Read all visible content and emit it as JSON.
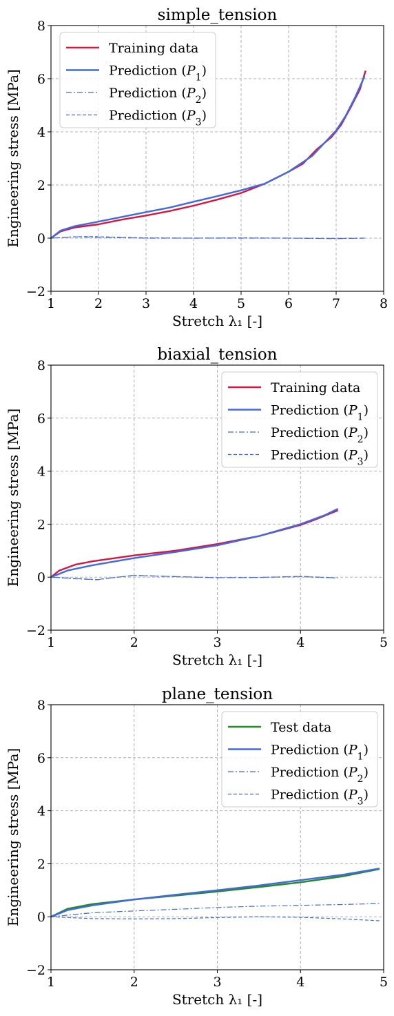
{
  "colors": {
    "training": "#d6163f",
    "test": "#228b22",
    "prediction": "#4169e1"
  },
  "chart_data": [
    {
      "type": "line",
      "title": "simple_tension",
      "xlabel": "Stretch λ₁ [-]",
      "ylabel": "Engineering stress [MPa]",
      "xlim": [
        1,
        8
      ],
      "ylim": [
        -2,
        8
      ],
      "xticks": [
        "1",
        "2",
        "3",
        "4",
        "5",
        "6",
        "7",
        "8"
      ],
      "yticks": [
        "−2",
        "0",
        "2",
        "4",
        "6",
        "8"
      ],
      "grid": true,
      "legend_position": "top-left",
      "series": [
        {
          "name": "Training data",
          "color_key": "training",
          "style": "solid",
          "x": [
            1.0,
            1.2,
            1.5,
            2.0,
            2.5,
            3.0,
            3.5,
            4.0,
            4.5,
            5.0,
            5.5,
            6.0,
            6.3,
            6.6,
            6.9,
            7.1,
            7.3,
            7.5,
            7.62
          ],
          "y": [
            0.0,
            0.25,
            0.4,
            0.52,
            0.7,
            0.85,
            1.02,
            1.22,
            1.45,
            1.7,
            2.05,
            2.5,
            2.8,
            3.35,
            3.8,
            4.25,
            4.9,
            5.6,
            6.3
          ]
        },
        {
          "name": "Prediction (P1)",
          "color_key": "prediction",
          "style": "solid",
          "x": [
            1.0,
            1.2,
            1.5,
            2.0,
            2.5,
            3.0,
            3.5,
            4.0,
            4.5,
            5.0,
            5.5,
            6.0,
            6.5,
            7.0,
            7.2,
            7.4,
            7.6
          ],
          "y": [
            0.0,
            0.28,
            0.45,
            0.62,
            0.8,
            0.98,
            1.15,
            1.37,
            1.58,
            1.8,
            2.05,
            2.5,
            3.1,
            4.05,
            4.6,
            5.3,
            6.1
          ]
        },
        {
          "name": "Prediction (P2)",
          "color_key": "prediction",
          "style": "dashdot",
          "x": [
            1.0,
            1.5,
            2.0,
            3.0,
            4.0,
            5.0,
            6.0,
            7.0,
            7.6
          ],
          "y": [
            0.0,
            0.05,
            0.03,
            0.0,
            0.0,
            0.0,
            0.0,
            -0.02,
            0.0
          ]
        },
        {
          "name": "Prediction (P3)",
          "color_key": "prediction",
          "style": "dashed",
          "x": [
            1.0,
            1.5,
            1.8,
            2.5,
            3.0,
            4.0,
            5.0,
            6.0,
            7.0,
            7.6
          ],
          "y": [
            0.0,
            0.05,
            0.06,
            0.03,
            0.01,
            0.0,
            0.01,
            0.0,
            -0.01,
            0.0
          ]
        }
      ]
    },
    {
      "type": "line",
      "title": "biaxial_tension",
      "xlabel": "Stretch λ₁ [-]",
      "ylabel": "Engineering stress [MPa]",
      "xlim": [
        1,
        5
      ],
      "ylim": [
        -2,
        8
      ],
      "xticks": [
        "1",
        "2",
        "3",
        "4",
        "5"
      ],
      "yticks": [
        "−2",
        "0",
        "2",
        "4",
        "6",
        "8"
      ],
      "grid": true,
      "legend_position": "top-right",
      "series": [
        {
          "name": "Training data",
          "color_key": "training",
          "style": "solid",
          "x": [
            1.0,
            1.1,
            1.3,
            1.5,
            2.0,
            2.5,
            3.0,
            3.5,
            4.0,
            4.2,
            4.45
          ],
          "y": [
            0.0,
            0.25,
            0.48,
            0.6,
            0.82,
            1.0,
            1.25,
            1.55,
            1.97,
            2.2,
            2.52
          ]
        },
        {
          "name": "Prediction (P1)",
          "color_key": "prediction",
          "style": "solid",
          "x": [
            1.0,
            1.2,
            1.5,
            2.0,
            2.5,
            3.0,
            3.5,
            4.0,
            4.3,
            4.45
          ],
          "y": [
            0.0,
            0.25,
            0.45,
            0.72,
            0.95,
            1.2,
            1.55,
            2.0,
            2.35,
            2.58
          ]
        },
        {
          "name": "Prediction (P2)",
          "color_key": "prediction",
          "style": "dashdot",
          "x": [
            1.0,
            1.3,
            1.55,
            1.8,
            2.0,
            2.5,
            3.0,
            3.5,
            4.0,
            4.45
          ],
          "y": [
            0.0,
            -0.06,
            -0.1,
            0.0,
            0.07,
            0.02,
            -0.02,
            -0.01,
            0.03,
            -0.03
          ]
        },
        {
          "name": "Prediction (P3)",
          "color_key": "prediction",
          "style": "dashed",
          "x": [
            1.0,
            1.3,
            1.55,
            1.8,
            2.0,
            2.5,
            3.0,
            3.5,
            4.0,
            4.45
          ],
          "y": [
            0.0,
            -0.05,
            -0.09,
            0.0,
            0.06,
            0.02,
            -0.02,
            -0.01,
            0.02,
            -0.03
          ]
        }
      ]
    },
    {
      "type": "line",
      "title": "plane_tension",
      "xlabel": "Stretch λ₁ [-]",
      "ylabel": "Engineering stress [MPa]",
      "xlim": [
        1,
        5
      ],
      "ylim": [
        -2,
        8
      ],
      "xticks": [
        "1",
        "2",
        "3",
        "4",
        "5"
      ],
      "yticks": [
        "−2",
        "0",
        "2",
        "4",
        "6",
        "8"
      ],
      "grid": true,
      "legend_position": "top-right",
      "series": [
        {
          "name": "Test data",
          "color_key": "test",
          "style": "solid",
          "x": [
            1.0,
            1.2,
            1.5,
            2.0,
            2.5,
            3.0,
            3.5,
            4.0,
            4.5,
            4.95
          ],
          "y": [
            0.0,
            0.3,
            0.48,
            0.65,
            0.8,
            0.95,
            1.12,
            1.3,
            1.52,
            1.8
          ]
        },
        {
          "name": "Prediction (P1)",
          "color_key": "prediction",
          "style": "solid",
          "x": [
            1.0,
            1.2,
            1.5,
            2.0,
            2.5,
            3.0,
            3.5,
            4.0,
            4.5,
            4.95
          ],
          "y": [
            0.0,
            0.25,
            0.43,
            0.65,
            0.83,
            1.0,
            1.18,
            1.38,
            1.58,
            1.82
          ]
        },
        {
          "name": "Prediction (P2)",
          "color_key": "prediction",
          "style": "dashdot",
          "x": [
            1.0,
            1.5,
            2.0,
            2.5,
            3.0,
            3.5,
            4.0,
            4.5,
            4.95
          ],
          "y": [
            0.0,
            0.15,
            0.22,
            0.28,
            0.35,
            0.4,
            0.43,
            0.46,
            0.5
          ]
        },
        {
          "name": "Prediction (P3)",
          "color_key": "prediction",
          "style": "dashed",
          "x": [
            1.0,
            1.5,
            2.0,
            2.5,
            3.0,
            3.5,
            4.0,
            4.5,
            4.95
          ],
          "y": [
            0.0,
            -0.07,
            -0.08,
            -0.07,
            -0.03,
            0.0,
            -0.02,
            -0.08,
            -0.15
          ]
        }
      ]
    }
  ]
}
